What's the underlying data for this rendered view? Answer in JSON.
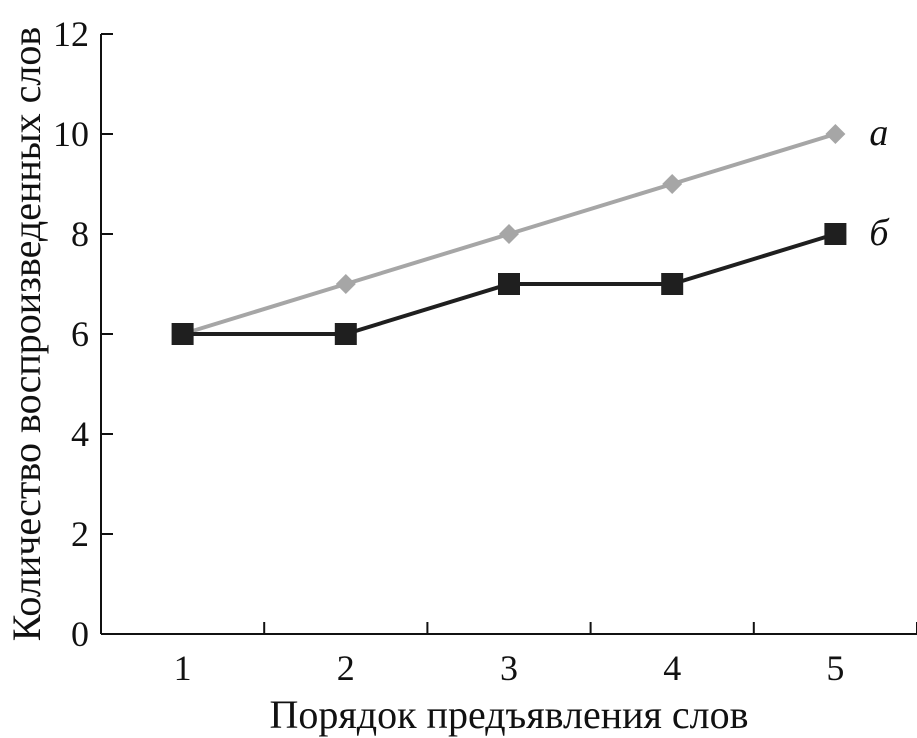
{
  "chart_data": {
    "type": "line",
    "xlabel": "Порядок предъявления слов",
    "ylabel": "Количество воспроизведенных слов",
    "x": [
      1,
      2,
      3,
      4,
      5
    ],
    "xlim": [
      0.5,
      5.5
    ],
    "ylim": [
      0,
      12
    ],
    "yticks": [
      0,
      2,
      4,
      6,
      8,
      10,
      12
    ],
    "xticks": [
      1,
      2,
      3,
      4,
      5
    ],
    "grid": false,
    "legend": "none",
    "series": [
      {
        "name": "а",
        "values": [
          6,
          7,
          8,
          9,
          10
        ],
        "color": "#a6a6a6",
        "marker": "diamond"
      },
      {
        "name": "б",
        "values": [
          6,
          6,
          7,
          7,
          8
        ],
        "color": "#1f1f1f",
        "marker": "square"
      }
    ]
  }
}
